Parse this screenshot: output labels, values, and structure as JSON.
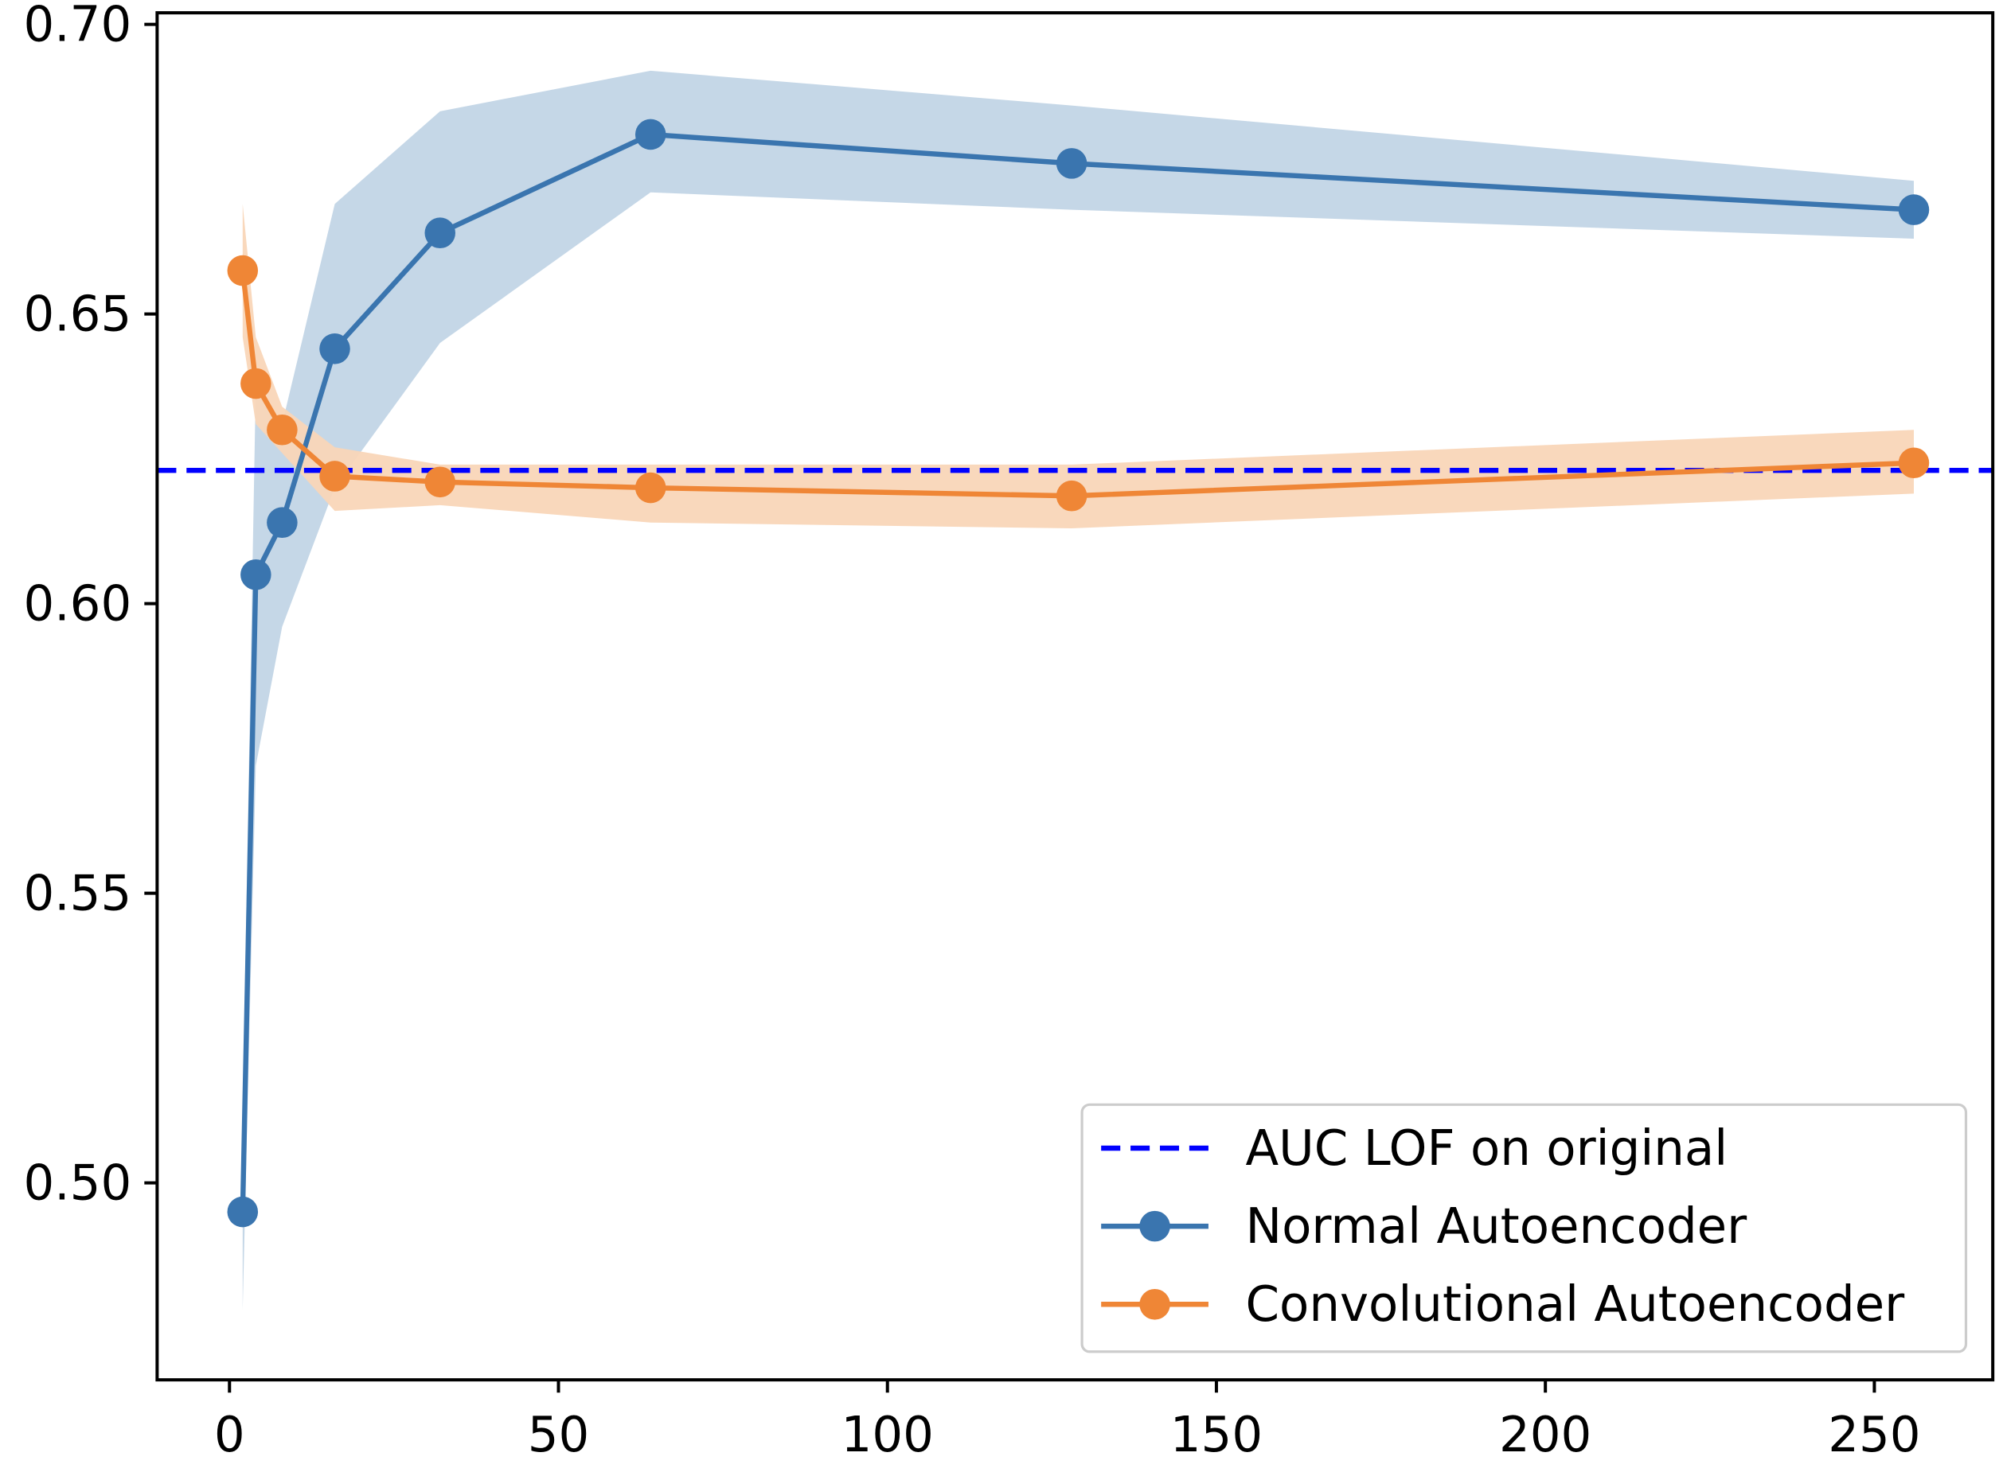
{
  "chart_data": {
    "type": "line",
    "title": "",
    "xlabel": "",
    "ylabel": "",
    "xlim": [
      -11,
      268
    ],
    "ylim": [
      0.466,
      0.702
    ],
    "xticks": [
      0,
      50,
      100,
      150,
      200,
      250
    ],
    "xtick_labels": [
      "0",
      "50",
      "100",
      "150",
      "200",
      "250"
    ],
    "yticks": [
      0.5,
      0.55,
      0.6,
      0.65,
      0.7
    ],
    "ytick_labels": [
      "0.50",
      "0.55",
      "0.60",
      "0.65",
      "0.70"
    ],
    "grid": false,
    "legend_position": "lower-right",
    "x": [
      2,
      4,
      8,
      16,
      32,
      64,
      128,
      256
    ],
    "reference_line": {
      "name": "AUC LOF on original",
      "y": 0.623,
      "color": "#0000ff",
      "style": "dashed"
    },
    "series": [
      {
        "name": "Normal Autoencoder",
        "color": "#3a75af",
        "band_color": "#c2d5e6",
        "values": [
          0.495,
          0.605,
          0.614,
          0.644,
          0.664,
          0.681,
          0.676,
          0.668
        ],
        "lower": [
          0.478,
          0.572,
          0.596,
          0.62,
          0.645,
          0.671,
          0.668,
          0.663
        ],
        "upper": [
          0.512,
          0.638,
          0.631,
          0.669,
          0.685,
          0.692,
          0.686,
          0.673
        ]
      },
      {
        "name": "Convolutional Autoencoder",
        "color": "#ef8636",
        "band_color": "#f9d6b8",
        "values": [
          0.6575,
          0.638,
          0.63,
          0.622,
          0.621,
          0.62,
          0.6186,
          0.6243
        ],
        "lower": [
          0.646,
          0.631,
          0.626,
          0.616,
          0.617,
          0.614,
          0.613,
          0.619
        ],
        "upper": [
          0.669,
          0.646,
          0.634,
          0.627,
          0.624,
          0.624,
          0.624,
          0.63
        ]
      }
    ]
  }
}
